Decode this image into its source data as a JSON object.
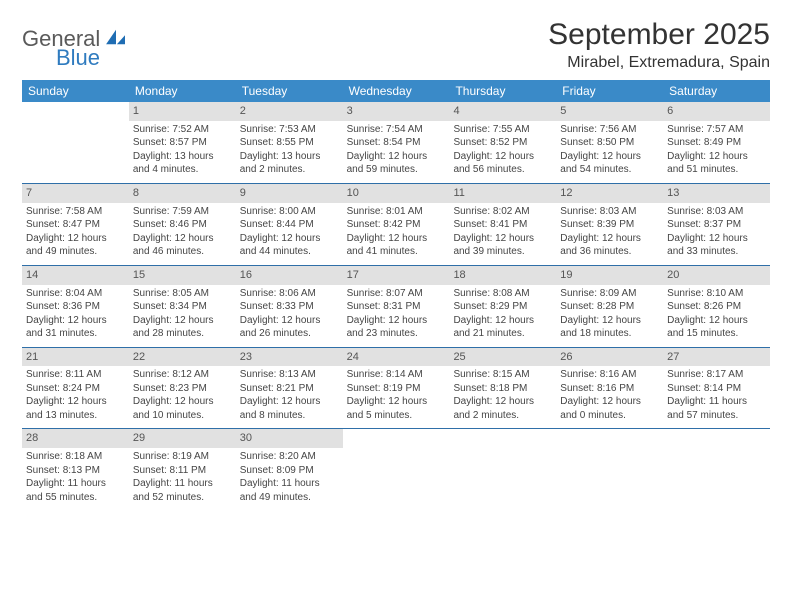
{
  "brand": {
    "word1": "General",
    "word2": "Blue"
  },
  "title": "September 2025",
  "location": "Mirabel, Extremadura, Spain",
  "colors": {
    "header_bg": "#3a8ac8",
    "header_text": "#ffffff",
    "daynum_bg": "#e1e1e1",
    "week_border": "#2f6fa8",
    "brand_gray": "#5a5a5a",
    "brand_blue": "#2f7bbf"
  },
  "weekdays": [
    "Sunday",
    "Monday",
    "Tuesday",
    "Wednesday",
    "Thursday",
    "Friday",
    "Saturday"
  ],
  "weeks": [
    [
      {
        "day": "",
        "empty": true
      },
      {
        "day": "1",
        "sunrise": "Sunrise: 7:52 AM",
        "sunset": "Sunset: 8:57 PM",
        "daylight1": "Daylight: 13 hours",
        "daylight2": "and 4 minutes."
      },
      {
        "day": "2",
        "sunrise": "Sunrise: 7:53 AM",
        "sunset": "Sunset: 8:55 PM",
        "daylight1": "Daylight: 13 hours",
        "daylight2": "and 2 minutes."
      },
      {
        "day": "3",
        "sunrise": "Sunrise: 7:54 AM",
        "sunset": "Sunset: 8:54 PM",
        "daylight1": "Daylight: 12 hours",
        "daylight2": "and 59 minutes."
      },
      {
        "day": "4",
        "sunrise": "Sunrise: 7:55 AM",
        "sunset": "Sunset: 8:52 PM",
        "daylight1": "Daylight: 12 hours",
        "daylight2": "and 56 minutes."
      },
      {
        "day": "5",
        "sunrise": "Sunrise: 7:56 AM",
        "sunset": "Sunset: 8:50 PM",
        "daylight1": "Daylight: 12 hours",
        "daylight2": "and 54 minutes."
      },
      {
        "day": "6",
        "sunrise": "Sunrise: 7:57 AM",
        "sunset": "Sunset: 8:49 PM",
        "daylight1": "Daylight: 12 hours",
        "daylight2": "and 51 minutes."
      }
    ],
    [
      {
        "day": "7",
        "sunrise": "Sunrise: 7:58 AM",
        "sunset": "Sunset: 8:47 PM",
        "daylight1": "Daylight: 12 hours",
        "daylight2": "and 49 minutes."
      },
      {
        "day": "8",
        "sunrise": "Sunrise: 7:59 AM",
        "sunset": "Sunset: 8:46 PM",
        "daylight1": "Daylight: 12 hours",
        "daylight2": "and 46 minutes."
      },
      {
        "day": "9",
        "sunrise": "Sunrise: 8:00 AM",
        "sunset": "Sunset: 8:44 PM",
        "daylight1": "Daylight: 12 hours",
        "daylight2": "and 44 minutes."
      },
      {
        "day": "10",
        "sunrise": "Sunrise: 8:01 AM",
        "sunset": "Sunset: 8:42 PM",
        "daylight1": "Daylight: 12 hours",
        "daylight2": "and 41 minutes."
      },
      {
        "day": "11",
        "sunrise": "Sunrise: 8:02 AM",
        "sunset": "Sunset: 8:41 PM",
        "daylight1": "Daylight: 12 hours",
        "daylight2": "and 39 minutes."
      },
      {
        "day": "12",
        "sunrise": "Sunrise: 8:03 AM",
        "sunset": "Sunset: 8:39 PM",
        "daylight1": "Daylight: 12 hours",
        "daylight2": "and 36 minutes."
      },
      {
        "day": "13",
        "sunrise": "Sunrise: 8:03 AM",
        "sunset": "Sunset: 8:37 PM",
        "daylight1": "Daylight: 12 hours",
        "daylight2": "and 33 minutes."
      }
    ],
    [
      {
        "day": "14",
        "sunrise": "Sunrise: 8:04 AM",
        "sunset": "Sunset: 8:36 PM",
        "daylight1": "Daylight: 12 hours",
        "daylight2": "and 31 minutes."
      },
      {
        "day": "15",
        "sunrise": "Sunrise: 8:05 AM",
        "sunset": "Sunset: 8:34 PM",
        "daylight1": "Daylight: 12 hours",
        "daylight2": "and 28 minutes."
      },
      {
        "day": "16",
        "sunrise": "Sunrise: 8:06 AM",
        "sunset": "Sunset: 8:33 PM",
        "daylight1": "Daylight: 12 hours",
        "daylight2": "and 26 minutes."
      },
      {
        "day": "17",
        "sunrise": "Sunrise: 8:07 AM",
        "sunset": "Sunset: 8:31 PM",
        "daylight1": "Daylight: 12 hours",
        "daylight2": "and 23 minutes."
      },
      {
        "day": "18",
        "sunrise": "Sunrise: 8:08 AM",
        "sunset": "Sunset: 8:29 PM",
        "daylight1": "Daylight: 12 hours",
        "daylight2": "and 21 minutes."
      },
      {
        "day": "19",
        "sunrise": "Sunrise: 8:09 AM",
        "sunset": "Sunset: 8:28 PM",
        "daylight1": "Daylight: 12 hours",
        "daylight2": "and 18 minutes."
      },
      {
        "day": "20",
        "sunrise": "Sunrise: 8:10 AM",
        "sunset": "Sunset: 8:26 PM",
        "daylight1": "Daylight: 12 hours",
        "daylight2": "and 15 minutes."
      }
    ],
    [
      {
        "day": "21",
        "sunrise": "Sunrise: 8:11 AM",
        "sunset": "Sunset: 8:24 PM",
        "daylight1": "Daylight: 12 hours",
        "daylight2": "and 13 minutes."
      },
      {
        "day": "22",
        "sunrise": "Sunrise: 8:12 AM",
        "sunset": "Sunset: 8:23 PM",
        "daylight1": "Daylight: 12 hours",
        "daylight2": "and 10 minutes."
      },
      {
        "day": "23",
        "sunrise": "Sunrise: 8:13 AM",
        "sunset": "Sunset: 8:21 PM",
        "daylight1": "Daylight: 12 hours",
        "daylight2": "and 8 minutes."
      },
      {
        "day": "24",
        "sunrise": "Sunrise: 8:14 AM",
        "sunset": "Sunset: 8:19 PM",
        "daylight1": "Daylight: 12 hours",
        "daylight2": "and 5 minutes."
      },
      {
        "day": "25",
        "sunrise": "Sunrise: 8:15 AM",
        "sunset": "Sunset: 8:18 PM",
        "daylight1": "Daylight: 12 hours",
        "daylight2": "and 2 minutes."
      },
      {
        "day": "26",
        "sunrise": "Sunrise: 8:16 AM",
        "sunset": "Sunset: 8:16 PM",
        "daylight1": "Daylight: 12 hours",
        "daylight2": "and 0 minutes."
      },
      {
        "day": "27",
        "sunrise": "Sunrise: 8:17 AM",
        "sunset": "Sunset: 8:14 PM",
        "daylight1": "Daylight: 11 hours",
        "daylight2": "and 57 minutes."
      }
    ],
    [
      {
        "day": "28",
        "sunrise": "Sunrise: 8:18 AM",
        "sunset": "Sunset: 8:13 PM",
        "daylight1": "Daylight: 11 hours",
        "daylight2": "and 55 minutes."
      },
      {
        "day": "29",
        "sunrise": "Sunrise: 8:19 AM",
        "sunset": "Sunset: 8:11 PM",
        "daylight1": "Daylight: 11 hours",
        "daylight2": "and 52 minutes."
      },
      {
        "day": "30",
        "sunrise": "Sunrise: 8:20 AM",
        "sunset": "Sunset: 8:09 PM",
        "daylight1": "Daylight: 11 hours",
        "daylight2": "and 49 minutes."
      },
      {
        "day": "",
        "empty": true
      },
      {
        "day": "",
        "empty": true
      },
      {
        "day": "",
        "empty": true
      },
      {
        "day": "",
        "empty": true
      }
    ]
  ]
}
